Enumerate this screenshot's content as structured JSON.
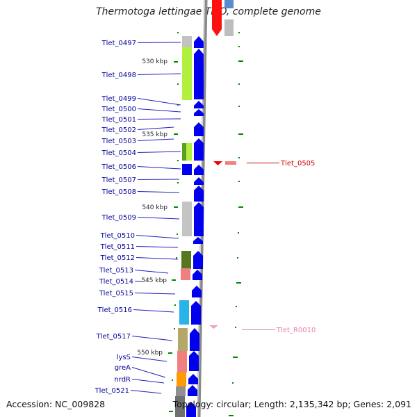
{
  "title": "Thermotoga lettingae TMO, complete genome",
  "accession": "Accession: NC_009828",
  "topology": "Topology: circular; Length: 2,135,342 bp; Genes: 2,091",
  "scale_marks": [
    "530 kbp",
    "535 kbp",
    "540 kbp",
    "545 kbp",
    "550 kbp"
  ],
  "genes_left": [
    "Tlet_0497",
    "Tlet_0498",
    "Tlet_0499",
    "Tlet_0500",
    "Tlet_0501",
    "Tlet_0502",
    "Tlet_0503",
    "Tlet_0504",
    "Tlet_0506",
    "Tlet_0507",
    "Tlet_0508",
    "Tlet_0509",
    "Tlet_0510",
    "Tlet_0511",
    "Tlet_0512",
    "Tlet_0513",
    "Tlet_0514",
    "Tlet_0515",
    "Tlet_0516",
    "Tlet_0517",
    "lysS",
    "greA",
    "nrdR",
    "Tlet_0521"
  ],
  "genes_right": [
    "Tlet_0505",
    "Tlet_R0010"
  ],
  "colors": {
    "cds": "#0000ee",
    "label_left": "#00009b",
    "label_rrna": "#cc0000",
    "label_trna": "#e080b0",
    "backbone": "#888888",
    "tick": "#008800"
  }
}
